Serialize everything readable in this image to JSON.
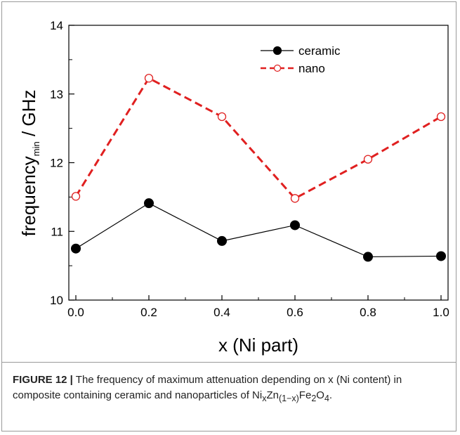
{
  "chart_data": {
    "type": "line",
    "xlabel": "x (Ni part)",
    "ylabel_main": "frequency",
    "ylabel_sub": "min",
    "ylabel_unit": " / GHz",
    "xlim": [
      0,
      1.0
    ],
    "ylim": [
      10,
      14
    ],
    "x_ticks": [
      "0.0",
      "0.2",
      "0.4",
      "0.6",
      "0.8",
      "1.0"
    ],
    "y_ticks": [
      "10",
      "11",
      "12",
      "13",
      "14"
    ],
    "x": [
      0.0,
      0.2,
      0.4,
      0.6,
      0.8,
      1.0
    ],
    "series": [
      {
        "name": "ceramic",
        "values": [
          10.75,
          11.41,
          10.86,
          11.09,
          10.63,
          10.64
        ],
        "color": "#000000",
        "style": "solid",
        "marker": "filled-circle"
      },
      {
        "name": "nano",
        "values": [
          11.51,
          13.23,
          12.67,
          11.48,
          12.05,
          12.67
        ],
        "color": "#e02020",
        "style": "dashed",
        "marker": "open-circle"
      }
    ],
    "legend": "top-center",
    "grid": false
  },
  "caption": {
    "label": "FIGURE 12 |",
    "text_before": " The frequency of maximum attenuation depending on x (Ni content) in composite containing ceramic and nanoparticles of ",
    "formula": [
      "Ni",
      "x",
      "Zn",
      "(1−x)",
      "Fe",
      "2",
      "O",
      "4"
    ],
    "text_after": "."
  }
}
